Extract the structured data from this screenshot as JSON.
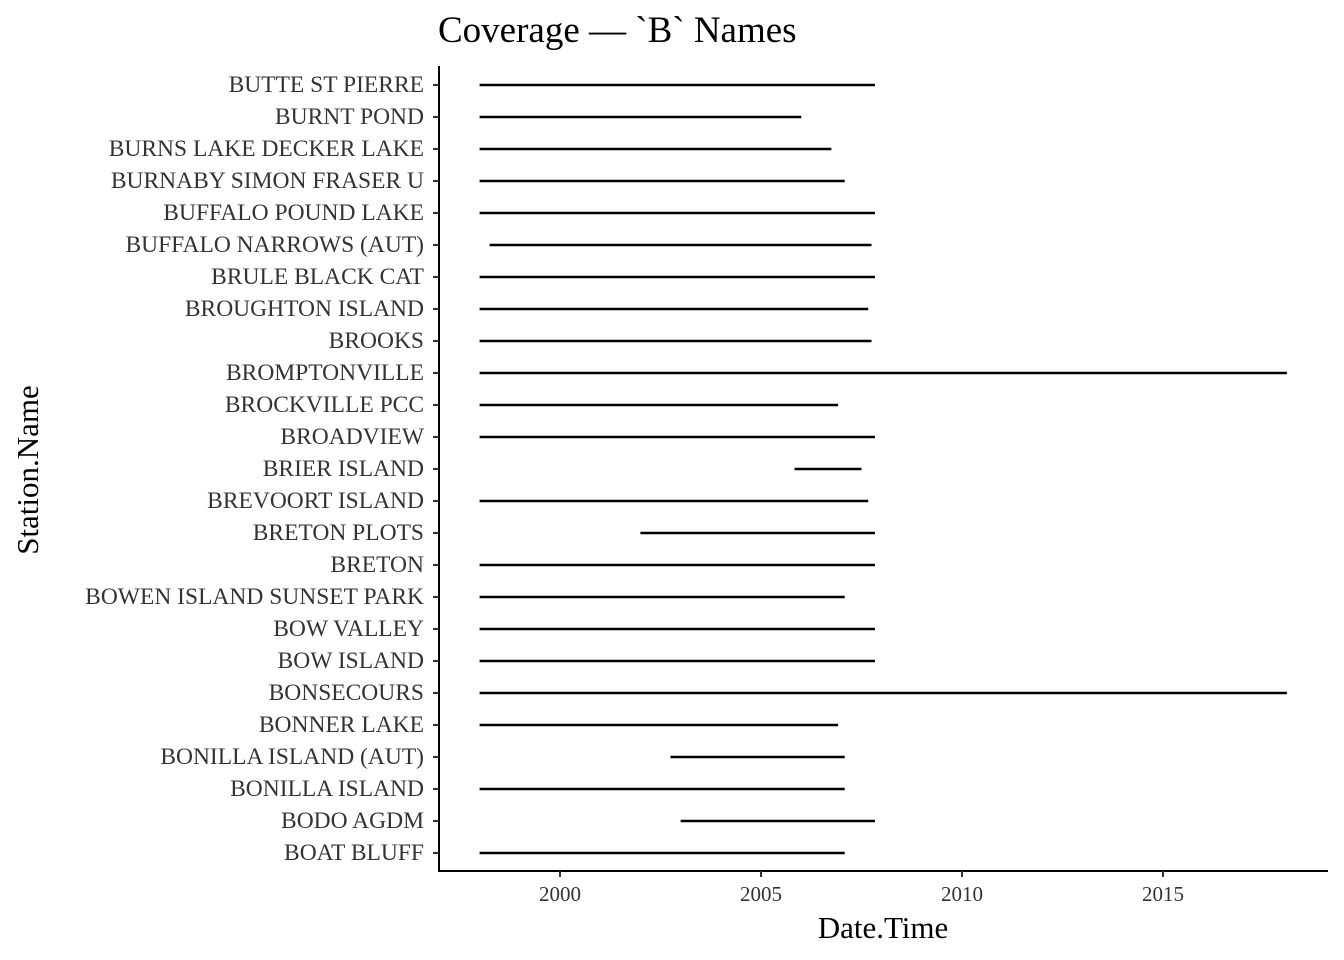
{
  "chart_data": {
    "type": "range",
    "title": "Coverage — `B` Names",
    "xlabel": "Date.Time",
    "ylabel": "Station.Name",
    "x_ticks": [
      2000,
      2005,
      2010,
      2015
    ],
    "xlim": [
      "1996-12-01",
      "2019-01-01"
    ],
    "grid": false,
    "line_color": "#000000",
    "stations": [
      {
        "name": "BUTTE ST PIERRE",
        "start": "1998-01-01",
        "end": "2007-11-01"
      },
      {
        "name": "BURNT POND",
        "start": "1998-01-01",
        "end": "2006-01-01"
      },
      {
        "name": "BURNS LAKE DECKER LAKE",
        "start": "1998-01-01",
        "end": "2006-10-01"
      },
      {
        "name": "BURNABY SIMON FRASER U",
        "start": "1998-01-01",
        "end": "2007-02-01"
      },
      {
        "name": "BUFFALO POUND LAKE",
        "start": "1998-01-01",
        "end": "2007-11-01"
      },
      {
        "name": "BUFFALO NARROWS (AUT)",
        "start": "1998-04-01",
        "end": "2007-10-01"
      },
      {
        "name": "BRULE BLACK CAT",
        "start": "1998-01-01",
        "end": "2007-11-01"
      },
      {
        "name": "BROUGHTON ISLAND",
        "start": "1998-01-01",
        "end": "2007-09-01"
      },
      {
        "name": "BROOKS",
        "start": "1998-01-01",
        "end": "2007-10-01"
      },
      {
        "name": "BROMPTONVILLE",
        "start": "1998-01-01",
        "end": "2018-02-01"
      },
      {
        "name": "BROCKVILLE PCC",
        "start": "1998-01-01",
        "end": "2006-12-01"
      },
      {
        "name": "BROADVIEW",
        "start": "1998-01-01",
        "end": "2007-11-01"
      },
      {
        "name": "BRIER ISLAND",
        "start": "2005-11-01",
        "end": "2007-07-01"
      },
      {
        "name": "BREVOORT ISLAND",
        "start": "1998-01-01",
        "end": "2007-09-01"
      },
      {
        "name": "BRETON PLOTS",
        "start": "2002-01-01",
        "end": "2007-11-01"
      },
      {
        "name": "BRETON",
        "start": "1998-01-01",
        "end": "2007-11-01"
      },
      {
        "name": "BOWEN ISLAND SUNSET PARK",
        "start": "1998-01-01",
        "end": "2007-02-01"
      },
      {
        "name": "BOW VALLEY",
        "start": "1998-01-01",
        "end": "2007-11-01"
      },
      {
        "name": "BOW ISLAND",
        "start": "1998-01-01",
        "end": "2007-11-01"
      },
      {
        "name": "BONSECOURS",
        "start": "1998-01-01",
        "end": "2018-02-01"
      },
      {
        "name": "BONNER LAKE",
        "start": "1998-01-01",
        "end": "2006-12-01"
      },
      {
        "name": "BONILLA ISLAND (AUT)",
        "start": "2002-10-01",
        "end": "2007-02-01"
      },
      {
        "name": "BONILLA ISLAND",
        "start": "1998-01-01",
        "end": "2007-02-01"
      },
      {
        "name": "BODO AGDM",
        "start": "2003-01-01",
        "end": "2007-11-01"
      },
      {
        "name": "BOAT BLUFF",
        "start": "1998-01-01",
        "end": "2007-02-01"
      }
    ]
  }
}
